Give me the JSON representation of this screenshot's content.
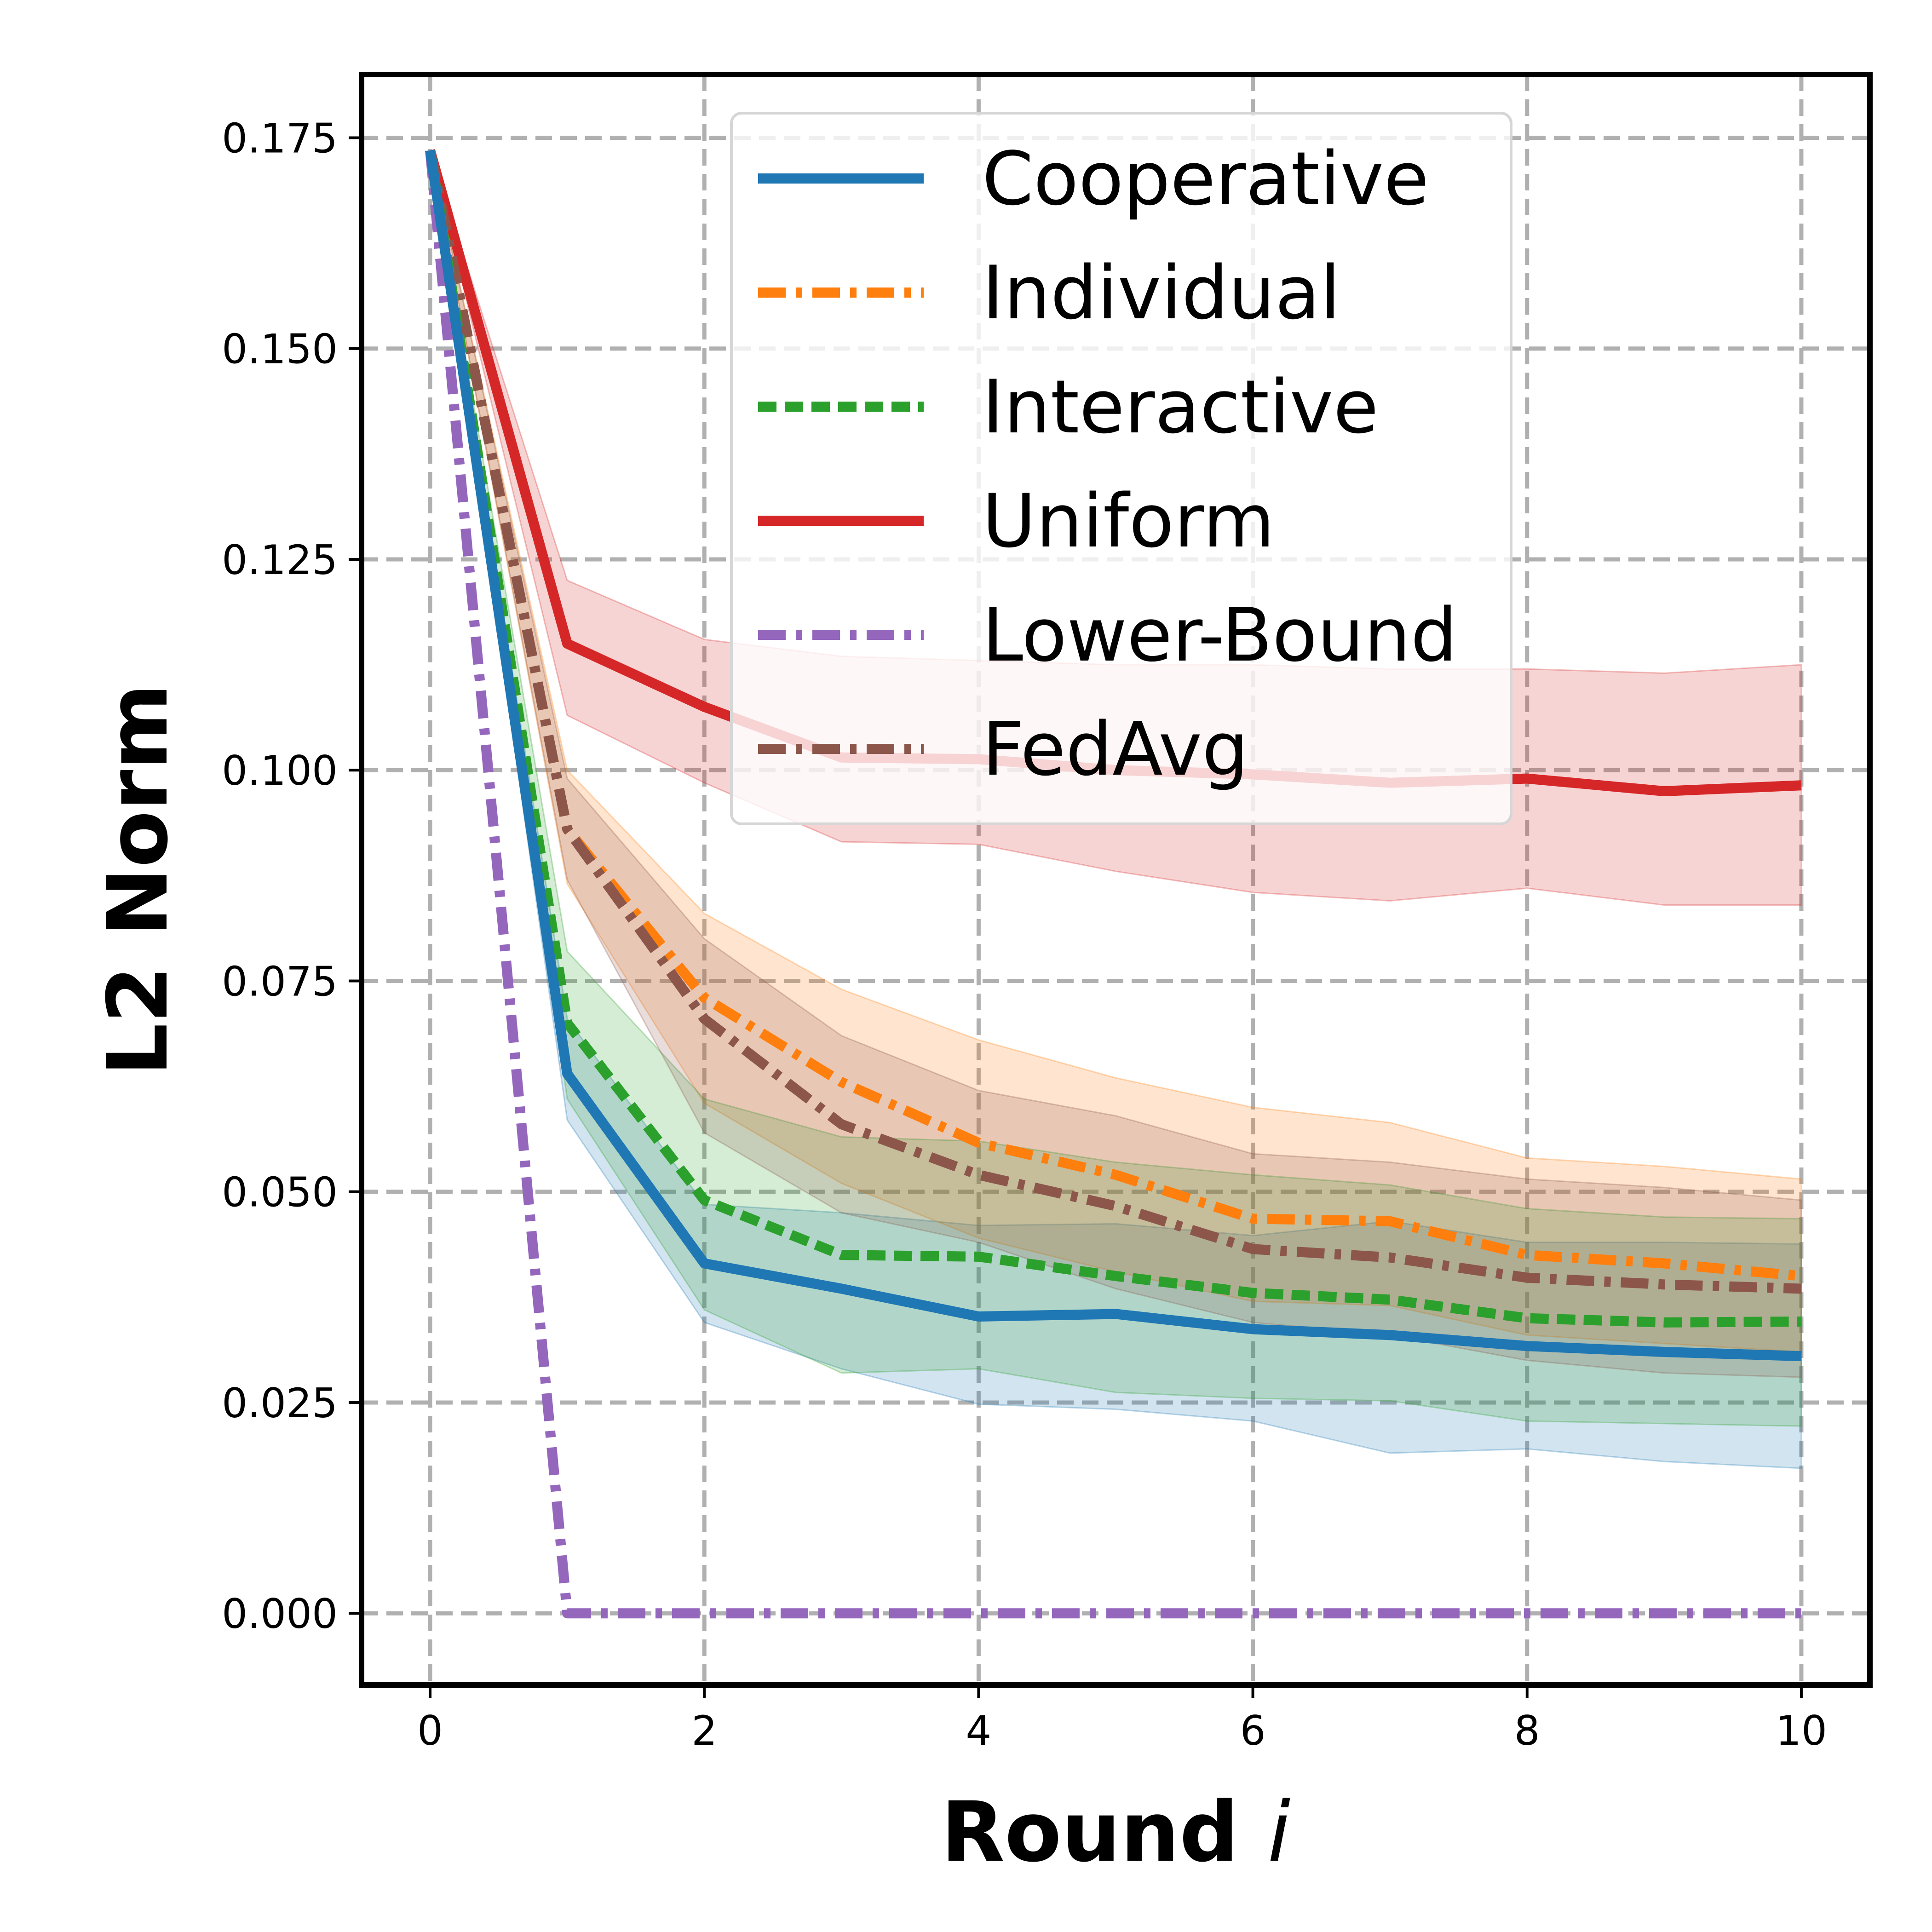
{
  "chart_data": {
    "type": "line",
    "xlabel": "Round",
    "xlabel_var": "i",
    "ylabel": "L2 Norm",
    "xlim": [
      -0.5,
      10.5
    ],
    "ylim": [
      -0.0085,
      0.1825
    ],
    "xticks": [
      0,
      2,
      4,
      6,
      8,
      10
    ],
    "yticks": [
      0.0,
      0.025,
      0.05,
      0.075,
      0.1,
      0.125,
      0.15,
      0.175
    ],
    "ytick_labels": [
      "0.000",
      "0.025",
      "0.050",
      "0.075",
      "0.100",
      "0.125",
      "0.150",
      "0.175"
    ],
    "grid": true,
    "legend_position": "upper-center",
    "x": [
      0,
      1,
      2,
      3,
      4,
      5,
      6,
      7,
      8,
      9,
      10
    ],
    "series": [
      {
        "name": "Cooperative",
        "color": "#1f77b4",
        "style": "solid",
        "values": [
          0.1735,
          0.064,
          0.0415,
          0.0385,
          0.0352,
          0.0355,
          0.0337,
          0.033,
          0.0317,
          0.031,
          0.0305
        ],
        "lower": [
          0.1735,
          0.0585,
          0.0345,
          0.029,
          0.0248,
          0.0242,
          0.0228,
          0.019,
          0.0195,
          0.018,
          0.0172
        ],
        "upper": [
          0.1735,
          0.0705,
          0.0485,
          0.0475,
          0.046,
          0.0462,
          0.0448,
          0.0465,
          0.044,
          0.044,
          0.0438
        ]
      },
      {
        "name": "Individual",
        "color": "#ff7f0e",
        "style": "dashdot",
        "values": [
          0.1735,
          0.093,
          0.073,
          0.063,
          0.0558,
          0.052,
          0.0468,
          0.0465,
          0.0425,
          0.0415,
          0.04
        ],
        "lower": [
          0.1735,
          0.0865,
          0.0605,
          0.051,
          0.0445,
          0.0405,
          0.037,
          0.0365,
          0.033,
          0.032,
          0.031
        ],
        "upper": [
          0.1735,
          0.1,
          0.083,
          0.074,
          0.068,
          0.0635,
          0.06,
          0.0582,
          0.054,
          0.053,
          0.0515
        ]
      },
      {
        "name": "Interactive",
        "color": "#2ca02c",
        "style": "dashed",
        "values": [
          0.1735,
          0.07,
          0.049,
          0.0425,
          0.0423,
          0.04,
          0.038,
          0.0372,
          0.035,
          0.0345,
          0.0346
        ],
        "lower": [
          0.1735,
          0.061,
          0.036,
          0.0285,
          0.029,
          0.0262,
          0.0255,
          0.0252,
          0.0228,
          0.0225,
          0.0222
        ],
        "upper": [
          0.1735,
          0.0785,
          0.061,
          0.0565,
          0.056,
          0.0535,
          0.052,
          0.0508,
          0.048,
          0.047,
          0.0468
        ]
      },
      {
        "name": "Uniform",
        "color": "#d62728",
        "style": "solid",
        "values": [
          0.1735,
          0.115,
          0.1075,
          0.1015,
          0.1013,
          0.1,
          0.0995,
          0.0985,
          0.099,
          0.0975,
          0.0982
        ],
        "lower": [
          0.1735,
          0.1065,
          0.0985,
          0.0915,
          0.0912,
          0.088,
          0.0855,
          0.0845,
          0.086,
          0.084,
          0.084
        ],
        "upper": [
          0.1735,
          0.1225,
          0.1155,
          0.1135,
          0.113,
          0.1125,
          0.1125,
          0.112,
          0.112,
          0.1115,
          0.1125
        ]
      },
      {
        "name": "Lower-Bound",
        "color": "#9467bd",
        "style": "dashdot",
        "values": [
          0.1735,
          0.0,
          0.0,
          0.0,
          0.0,
          0.0,
          0.0,
          0.0,
          0.0,
          0.0,
          0.0
        ]
      },
      {
        "name": "FedAvg",
        "color": "#8c564b",
        "style": "dashdot",
        "values": [
          0.1735,
          0.093,
          0.0705,
          0.058,
          0.052,
          0.0483,
          0.0432,
          0.0422,
          0.0398,
          0.039,
          0.0385
        ],
        "lower": [
          0.1735,
          0.087,
          0.057,
          0.0475,
          0.044,
          0.0385,
          0.0345,
          0.033,
          0.03,
          0.0285,
          0.028
        ],
        "upper": [
          0.1735,
          0.099,
          0.08,
          0.0685,
          0.062,
          0.059,
          0.0545,
          0.0535,
          0.0515,
          0.0505,
          0.049
        ]
      }
    ]
  }
}
